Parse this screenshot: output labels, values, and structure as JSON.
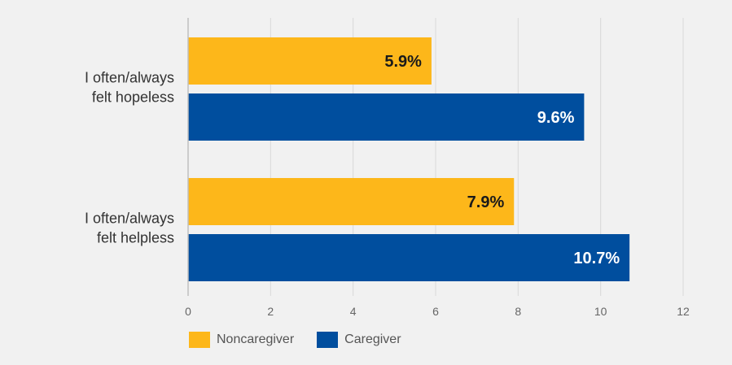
{
  "colors": {
    "noncaregiver": "#FDB71A",
    "caregiver": "#004E9E",
    "background": "#f1f1f1",
    "grid": "#d9d9d9",
    "axis": "#bfbfbf",
    "tick_text": "#666666",
    "category_text": "#333333"
  },
  "legend": [
    {
      "label": "Noncaregiver",
      "color": "#FDB71A"
    },
    {
      "label": "Caregiver",
      "color": "#004E9E"
    }
  ],
  "chart_data": {
    "type": "bar",
    "orientation": "horizontal",
    "categories": [
      "I often/always felt hopeless",
      "I often/always felt helpless"
    ],
    "category_lines": [
      [
        "I often/always",
        "felt hopeless"
      ],
      [
        "I often/always",
        "felt helpless"
      ]
    ],
    "series": [
      {
        "name": "Noncaregiver",
        "values": [
          5.9,
          7.9
        ],
        "labels": [
          "5.9%",
          "7.9%"
        ]
      },
      {
        "name": "Caregiver",
        "values": [
          9.6,
          10.7
        ],
        "labels": [
          "9.6%",
          "10.7%"
        ]
      }
    ],
    "xlim": [
      0,
      12
    ],
    "xticks": [
      0,
      2,
      4,
      6,
      8,
      10,
      12
    ],
    "grid": true,
    "legend_position": "bottom-left",
    "title": "",
    "xlabel": "",
    "ylabel": ""
  }
}
